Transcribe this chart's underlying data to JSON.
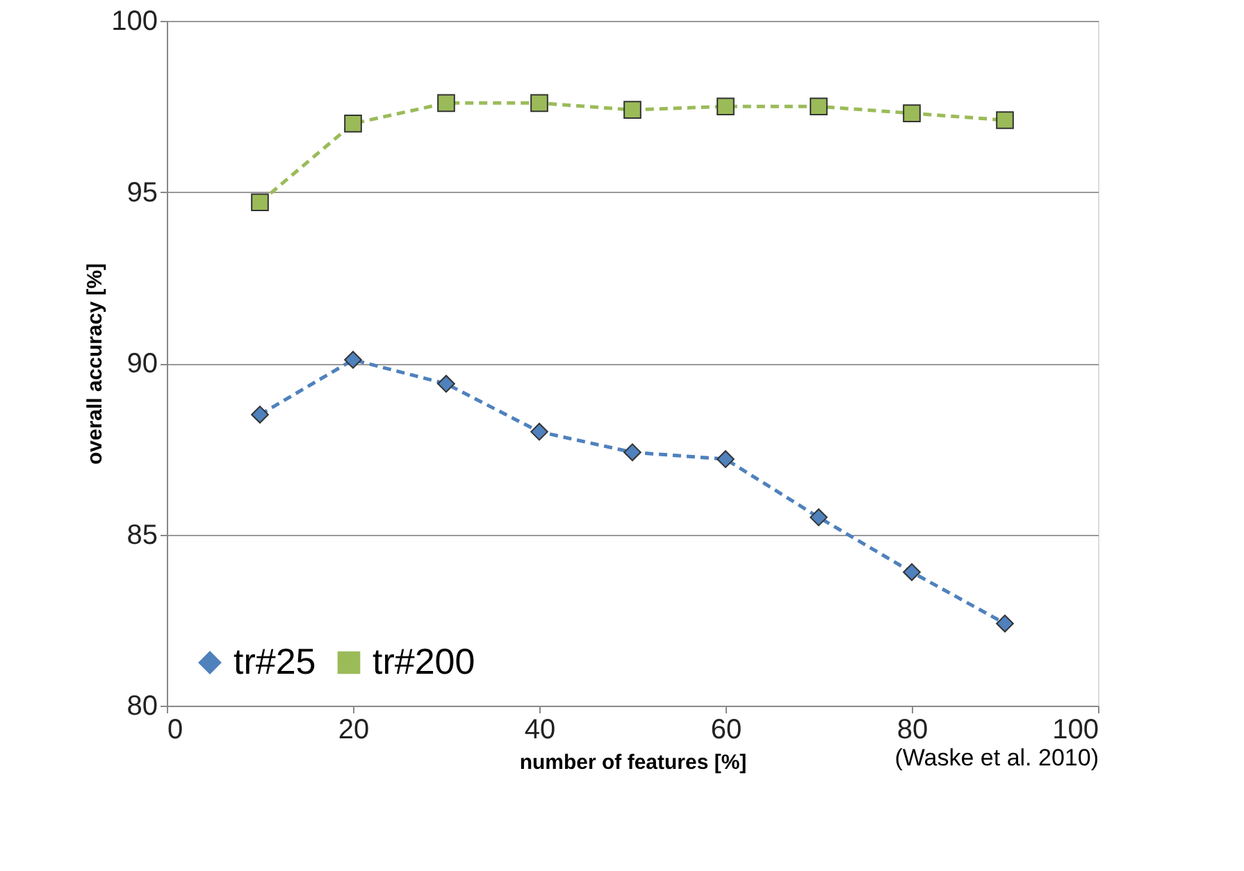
{
  "chart_data": {
    "type": "line",
    "xlabel": "number of features [%]",
    "ylabel": "overall accuracy [%]",
    "x": [
      10,
      20,
      30,
      40,
      50,
      60,
      70,
      80,
      90
    ],
    "series": [
      {
        "name": "tr#25",
        "color": "#4f81bd",
        "marker": "diamond",
        "values": [
          88.5,
          90.1,
          89.4,
          88.0,
          87.4,
          87.2,
          85.5,
          83.9,
          82.4
        ]
      },
      {
        "name": "tr#200",
        "color": "#9bbb59",
        "marker": "square",
        "values": [
          94.7,
          97.0,
          97.6,
          97.6,
          97.4,
          97.5,
          97.5,
          97.3,
          97.1
        ]
      }
    ],
    "xlim": [
      0,
      100
    ],
    "xticks": [
      0,
      20,
      40,
      60,
      80,
      100
    ],
    "ylim": [
      80,
      100
    ],
    "yticks": [
      80,
      85,
      90,
      95,
      100
    ],
    "grid": "y",
    "legend": "bottom left",
    "line_style": "dashed",
    "annotations": [
      "(Waske  et al. 2010)"
    ]
  }
}
